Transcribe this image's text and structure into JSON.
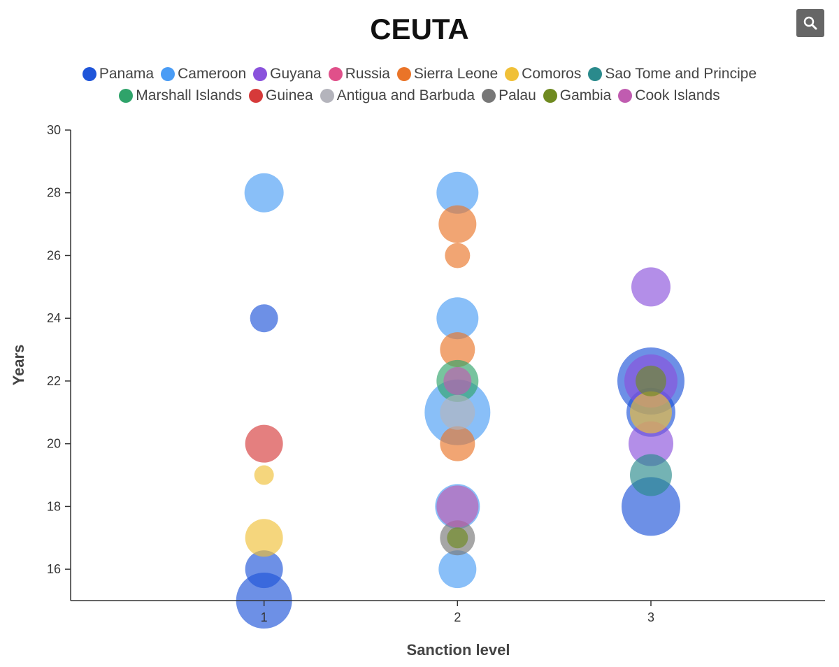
{
  "chart_data": {
    "type": "scatter",
    "subtype": "bubble",
    "title": "CEUTA",
    "xlabel": "Sanction level",
    "ylabel": "Years",
    "xlim": [
      0,
      3.9
    ],
    "ylim": [
      15,
      30
    ],
    "xticks": [
      "1",
      "2",
      "3"
    ],
    "yticks": [
      "16",
      "18",
      "20",
      "22",
      "24",
      "26",
      "28",
      "30"
    ],
    "legend_position": "top",
    "series": [
      {
        "name": "Panama",
        "color": "#1f55d9",
        "points": [
          [
            1,
            24,
            20
          ],
          [
            1,
            16,
            27
          ],
          [
            1,
            15,
            40
          ],
          [
            3,
            22,
            48
          ],
          [
            3,
            21,
            35
          ],
          [
            3,
            18,
            42
          ]
        ]
      },
      {
        "name": "Cameroon",
        "color": "#4a9cf5",
        "points": [
          [
            1,
            28,
            28
          ],
          [
            2,
            28,
            30
          ],
          [
            2,
            24,
            30
          ],
          [
            2,
            21,
            47
          ],
          [
            2,
            18,
            32
          ],
          [
            2,
            16,
            27
          ]
        ]
      },
      {
        "name": "Guyana",
        "color": "#8a52dc",
        "points": [
          [
            3,
            25,
            28
          ],
          [
            3,
            22,
            38
          ],
          [
            3,
            20,
            32
          ]
        ]
      },
      {
        "name": "Russia",
        "color": "#e0508a",
        "points": []
      },
      {
        "name": "Sierra Leone",
        "color": "#ea7428",
        "points": [
          [
            2,
            27,
            27
          ],
          [
            2,
            26,
            18
          ],
          [
            2,
            23,
            25
          ],
          [
            2,
            20,
            25
          ]
        ]
      },
      {
        "name": "Comoros",
        "color": "#f0c038",
        "points": [
          [
            1,
            19,
            14
          ],
          [
            1,
            17,
            27
          ],
          [
            3,
            21,
            30
          ]
        ]
      },
      {
        "name": "Sao Tome and Principe",
        "color": "#2a8a8c",
        "points": [
          [
            3,
            19,
            30
          ]
        ]
      },
      {
        "name": "Marshall Islands",
        "color": "#2fa36a",
        "points": [
          [
            2,
            22,
            30
          ]
        ]
      },
      {
        "name": "Guinea",
        "color": "#d63a3a",
        "points": [
          [
            1,
            20,
            27
          ]
        ]
      },
      {
        "name": "Antigua and Barbuda",
        "color": "#b4b4bc",
        "points": [
          [
            2,
            21,
            25
          ]
        ]
      },
      {
        "name": "Palau",
        "color": "#777777",
        "points": [
          [
            2,
            17,
            25
          ]
        ]
      },
      {
        "name": "Gambia",
        "color": "#6f8a20",
        "points": [
          [
            2,
            17,
            15
          ],
          [
            3,
            22,
            22
          ]
        ]
      },
      {
        "name": "Cook Islands",
        "color": "#c05cb0",
        "points": [
          [
            2,
            22,
            20
          ],
          [
            2,
            18,
            30
          ]
        ]
      }
    ]
  },
  "toolbar": {
    "zoom_icon": "magnifier-icon"
  }
}
